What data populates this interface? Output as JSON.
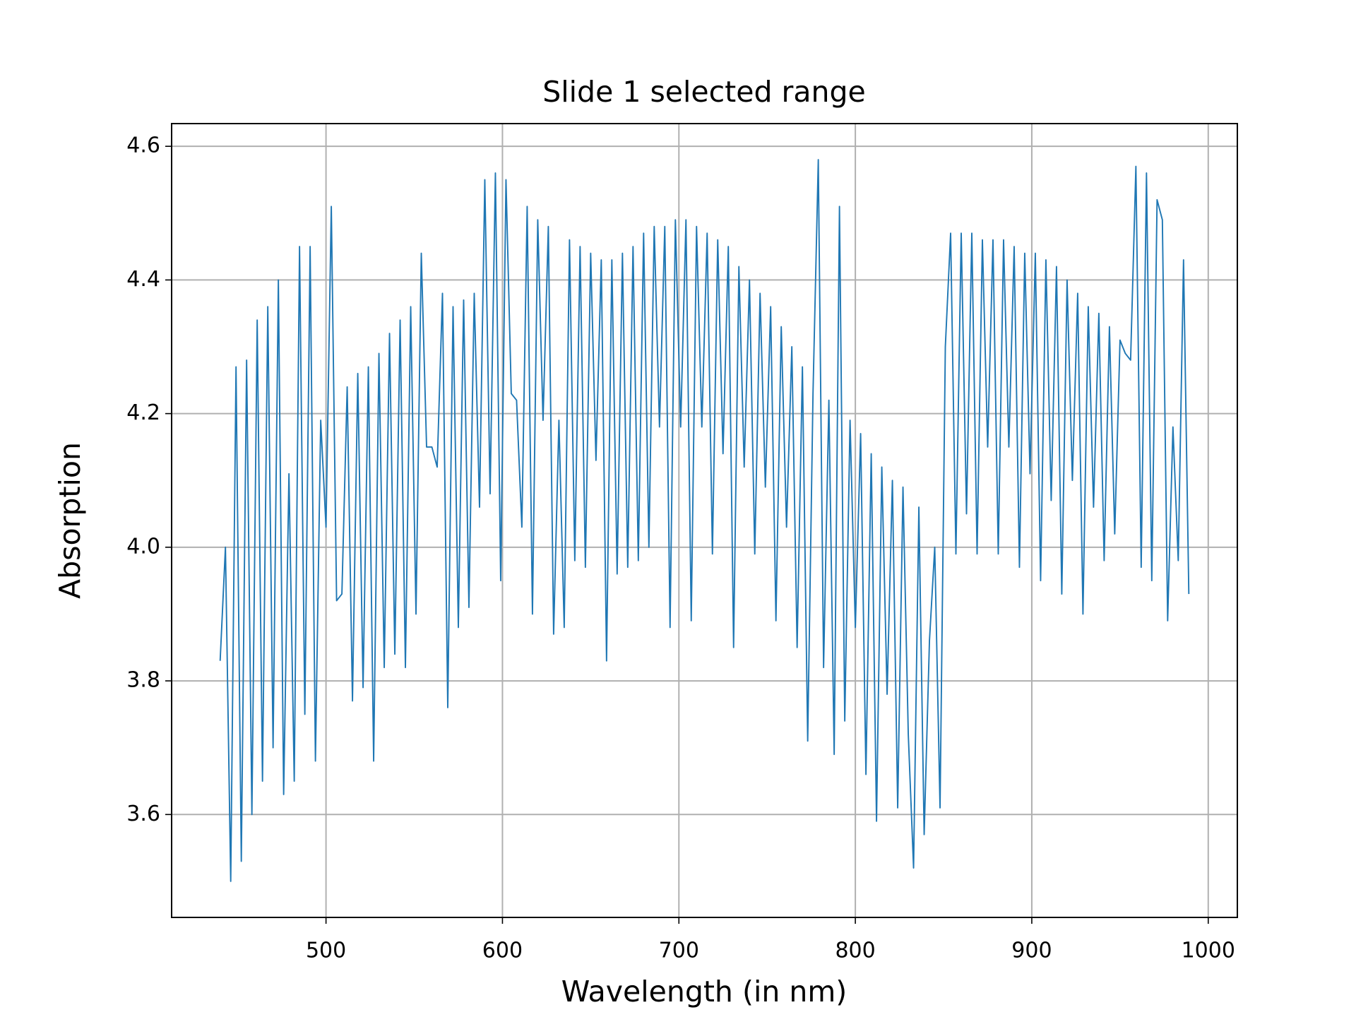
{
  "chart_data": {
    "type": "line",
    "title": "Slide 1 selected range",
    "xlabel": "Wavelength (in nm)",
    "ylabel": "Absorption",
    "color": "#1f77b4",
    "grid": true,
    "xlim": [
      412.5,
      1016.5
    ],
    "ylim": [
      3.446,
      4.634
    ],
    "xticks": [
      500,
      600,
      700,
      800,
      900,
      1000
    ],
    "yticks": [
      3.6,
      3.8,
      {
        "value": 4,
        "label": "4.0"
      },
      4.2,
      4.4,
      4.6
    ],
    "x": [
      440,
      443,
      446,
      449,
      452,
      455,
      458,
      461,
      464,
      467,
      470,
      473,
      476,
      479,
      482,
      485,
      488,
      491,
      494,
      497,
      500,
      503,
      506,
      509,
      512,
      515,
      518,
      521,
      524,
      527,
      530,
      533,
      536,
      539,
      542,
      545,
      548,
      551,
      554,
      557,
      560,
      563,
      566,
      569,
      572,
      575,
      578,
      581,
      584,
      587,
      590,
      593,
      596,
      599,
      602,
      605,
      608,
      611,
      614,
      617,
      620,
      623,
      626,
      629,
      632,
      635,
      638,
      641,
      644,
      647,
      650,
      653,
      656,
      659,
      662,
      665,
      668,
      671,
      674,
      677,
      680,
      683,
      686,
      689,
      692,
      695,
      698,
      701,
      704,
      707,
      710,
      713,
      716,
      719,
      722,
      725,
      728,
      731,
      734,
      737,
      740,
      743,
      746,
      749,
      752,
      755,
      758,
      761,
      764,
      767,
      770,
      773,
      776,
      779,
      782,
      785,
      788,
      791,
      794,
      797,
      800,
      803,
      806,
      809,
      812,
      815,
      818,
      821,
      824,
      827,
      830,
      833,
      836,
      839,
      842,
      845,
      848,
      851,
      854,
      857,
      860,
      863,
      866,
      869,
      872,
      875,
      878,
      881,
      884,
      887,
      890,
      893,
      896,
      899,
      902,
      905,
      908,
      911,
      914,
      917,
      920,
      923,
      926,
      929,
      932,
      935,
      938,
      941,
      944,
      947,
      950,
      953,
      956,
      959,
      962,
      965,
      968,
      971,
      974,
      977,
      980,
      983,
      986,
      989
    ],
    "values": [
      3.83,
      4.0,
      3.5,
      4.27,
      3.53,
      4.28,
      3.6,
      4.34,
      3.65,
      4.36,
      3.7,
      4.4,
      3.63,
      4.11,
      3.65,
      4.45,
      3.75,
      4.45,
      3.68,
      4.19,
      4.03,
      4.51,
      3.92,
      3.93,
      4.24,
      3.77,
      4.26,
      3.79,
      4.27,
      3.68,
      4.29,
      3.82,
      4.32,
      3.84,
      4.34,
      3.82,
      4.36,
      3.9,
      4.44,
      4.15,
      4.15,
      4.12,
      4.38,
      3.76,
      4.36,
      3.88,
      4.37,
      3.91,
      4.38,
      4.06,
      4.55,
      4.08,
      4.56,
      3.95,
      4.55,
      4.23,
      4.22,
      4.03,
      4.51,
      3.9,
      4.49,
      4.19,
      4.48,
      3.87,
      4.19,
      3.88,
      4.46,
      3.98,
      4.45,
      3.97,
      4.44,
      4.13,
      4.43,
      3.83,
      4.43,
      3.96,
      4.44,
      3.97,
      4.45,
      3.98,
      4.47,
      4.0,
      4.48,
      4.18,
      4.48,
      3.88,
      4.49,
      4.18,
      4.49,
      3.89,
      4.48,
      4.18,
      4.47,
      3.99,
      4.46,
      4.14,
      4.45,
      3.85,
      4.42,
      4.12,
      4.4,
      3.99,
      4.38,
      4.09,
      4.36,
      3.89,
      4.33,
      4.03,
      4.3,
      3.85,
      4.27,
      3.71,
      4.23,
      4.58,
      3.82,
      4.22,
      3.69,
      4.51,
      3.74,
      4.19,
      3.88,
      4.17,
      3.66,
      4.14,
      3.59,
      4.12,
      3.78,
      4.1,
      3.61,
      4.09,
      3.72,
      3.52,
      4.06,
      3.57,
      3.86,
      4.0,
      3.61,
      4.3,
      4.47,
      3.99,
      4.47,
      4.05,
      4.47,
      3.99,
      4.46,
      4.15,
      4.46,
      3.99,
      4.46,
      4.15,
      4.45,
      3.97,
      4.44,
      4.11,
      4.44,
      3.95,
      4.43,
      4.07,
      4.42,
      3.93,
      4.4,
      4.1,
      4.38,
      3.9,
      4.36,
      4.06,
      4.35,
      3.98,
      4.33,
      4.02,
      4.31,
      4.29,
      4.28,
      4.57,
      3.97,
      4.56,
      3.95,
      4.52,
      4.49,
      3.89,
      4.18,
      3.98,
      4.43,
      3.93
    ]
  }
}
